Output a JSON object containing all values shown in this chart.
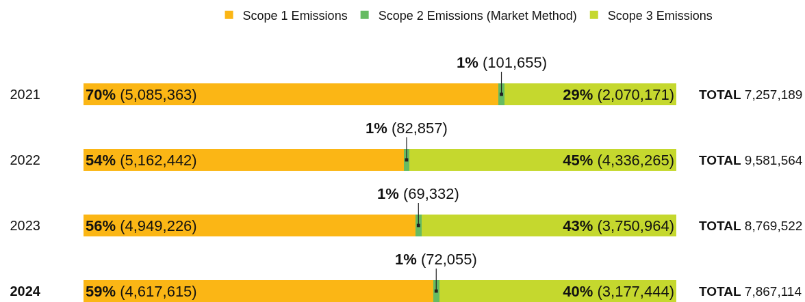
{
  "chart_data": {
    "type": "bar",
    "orientation": "horizontal",
    "stacked": true,
    "categories": [
      "2021",
      "2022",
      "2023",
      "2024"
    ],
    "series": [
      {
        "name": "Scope 1 Emissions",
        "color": "#fbb615",
        "values": [
          70,
          54,
          56,
          59
        ],
        "value_labels": [
          "70% (5,085,363)",
          "54% (5,162,442)",
          "56% (4,949,226)",
          "59% (4,617,615)"
        ]
      },
      {
        "name": "Scope 2 Emissions (Market Method)",
        "color": "#66bb62",
        "values": [
          1,
          1,
          1,
          1
        ],
        "value_labels": [
          "1% (101,655)",
          "1% (82,857)",
          "1% (69,332)",
          "1% (72,055)"
        ]
      },
      {
        "name": "Scope 3 Emissions",
        "color": "#c5d82e",
        "values": [
          29,
          45,
          43,
          40
        ],
        "value_labels": [
          "29% (2,070,171)",
          "45% (4,336,265)",
          "43% (3,750,964)",
          "40% (3,177,444)"
        ]
      }
    ],
    "totals": [
      "TOTAL 7,257,189",
      "TOTAL 9,581,564",
      "TOTAL 8,769,522",
      "TOTAL 7,867,114"
    ],
    "xlim": [
      0,
      100
    ],
    "legend": "top",
    "tick_labels": "y"
  }
}
